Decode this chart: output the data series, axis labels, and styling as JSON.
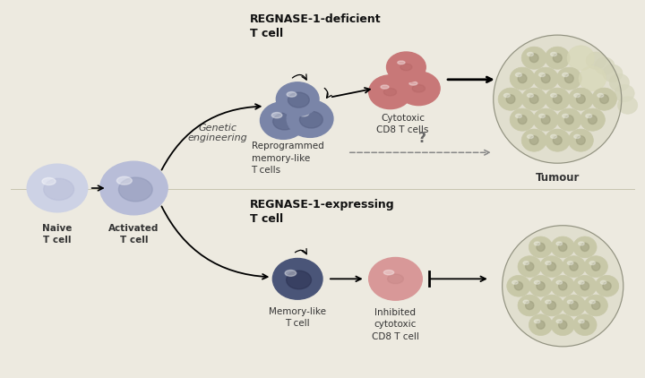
{
  "bg_color": "#edeae0",
  "title_top": "REGNASE-1-deficient\nT cell",
  "title_bottom": "REGNASE-1-expressing\nT cell",
  "label_naive": "Naive\nT cell",
  "label_activated": "Activated\nT cell",
  "label_reprogrammed": "Reprogrammed\nmemory-like\nT cells",
  "label_cytotoxic": "Cytotoxic\nCD8 T cells",
  "label_tumour": "Tumour",
  "label_memory": "Memory-like\nT cell",
  "label_inhibited": "Inhibited\ncytotoxic\nCD8 T cell",
  "label_genetic": "Genetic\nengineering",
  "label_question": "?",
  "naive_color": "#cdd2e5",
  "naive_inner": "#b8bdd8",
  "activated_color": "#b8bdd8",
  "activated_inner": "#9098b8",
  "reprogrammed_color": "#7a85a8",
  "reprogrammed_inner": "#555f82",
  "cytotoxic_color": "#c87878",
  "cytotoxic_inner": "#b06060",
  "memory_color": "#4a5578",
  "memory_inner": "#2a3050",
  "inhibited_color": "#d89898",
  "inhibited_inner": "#c08080",
  "tumour_cell_color": "#c8c8a8",
  "tumour_border_color": "#909080",
  "tumour_nucleus_color": "#a0a080"
}
